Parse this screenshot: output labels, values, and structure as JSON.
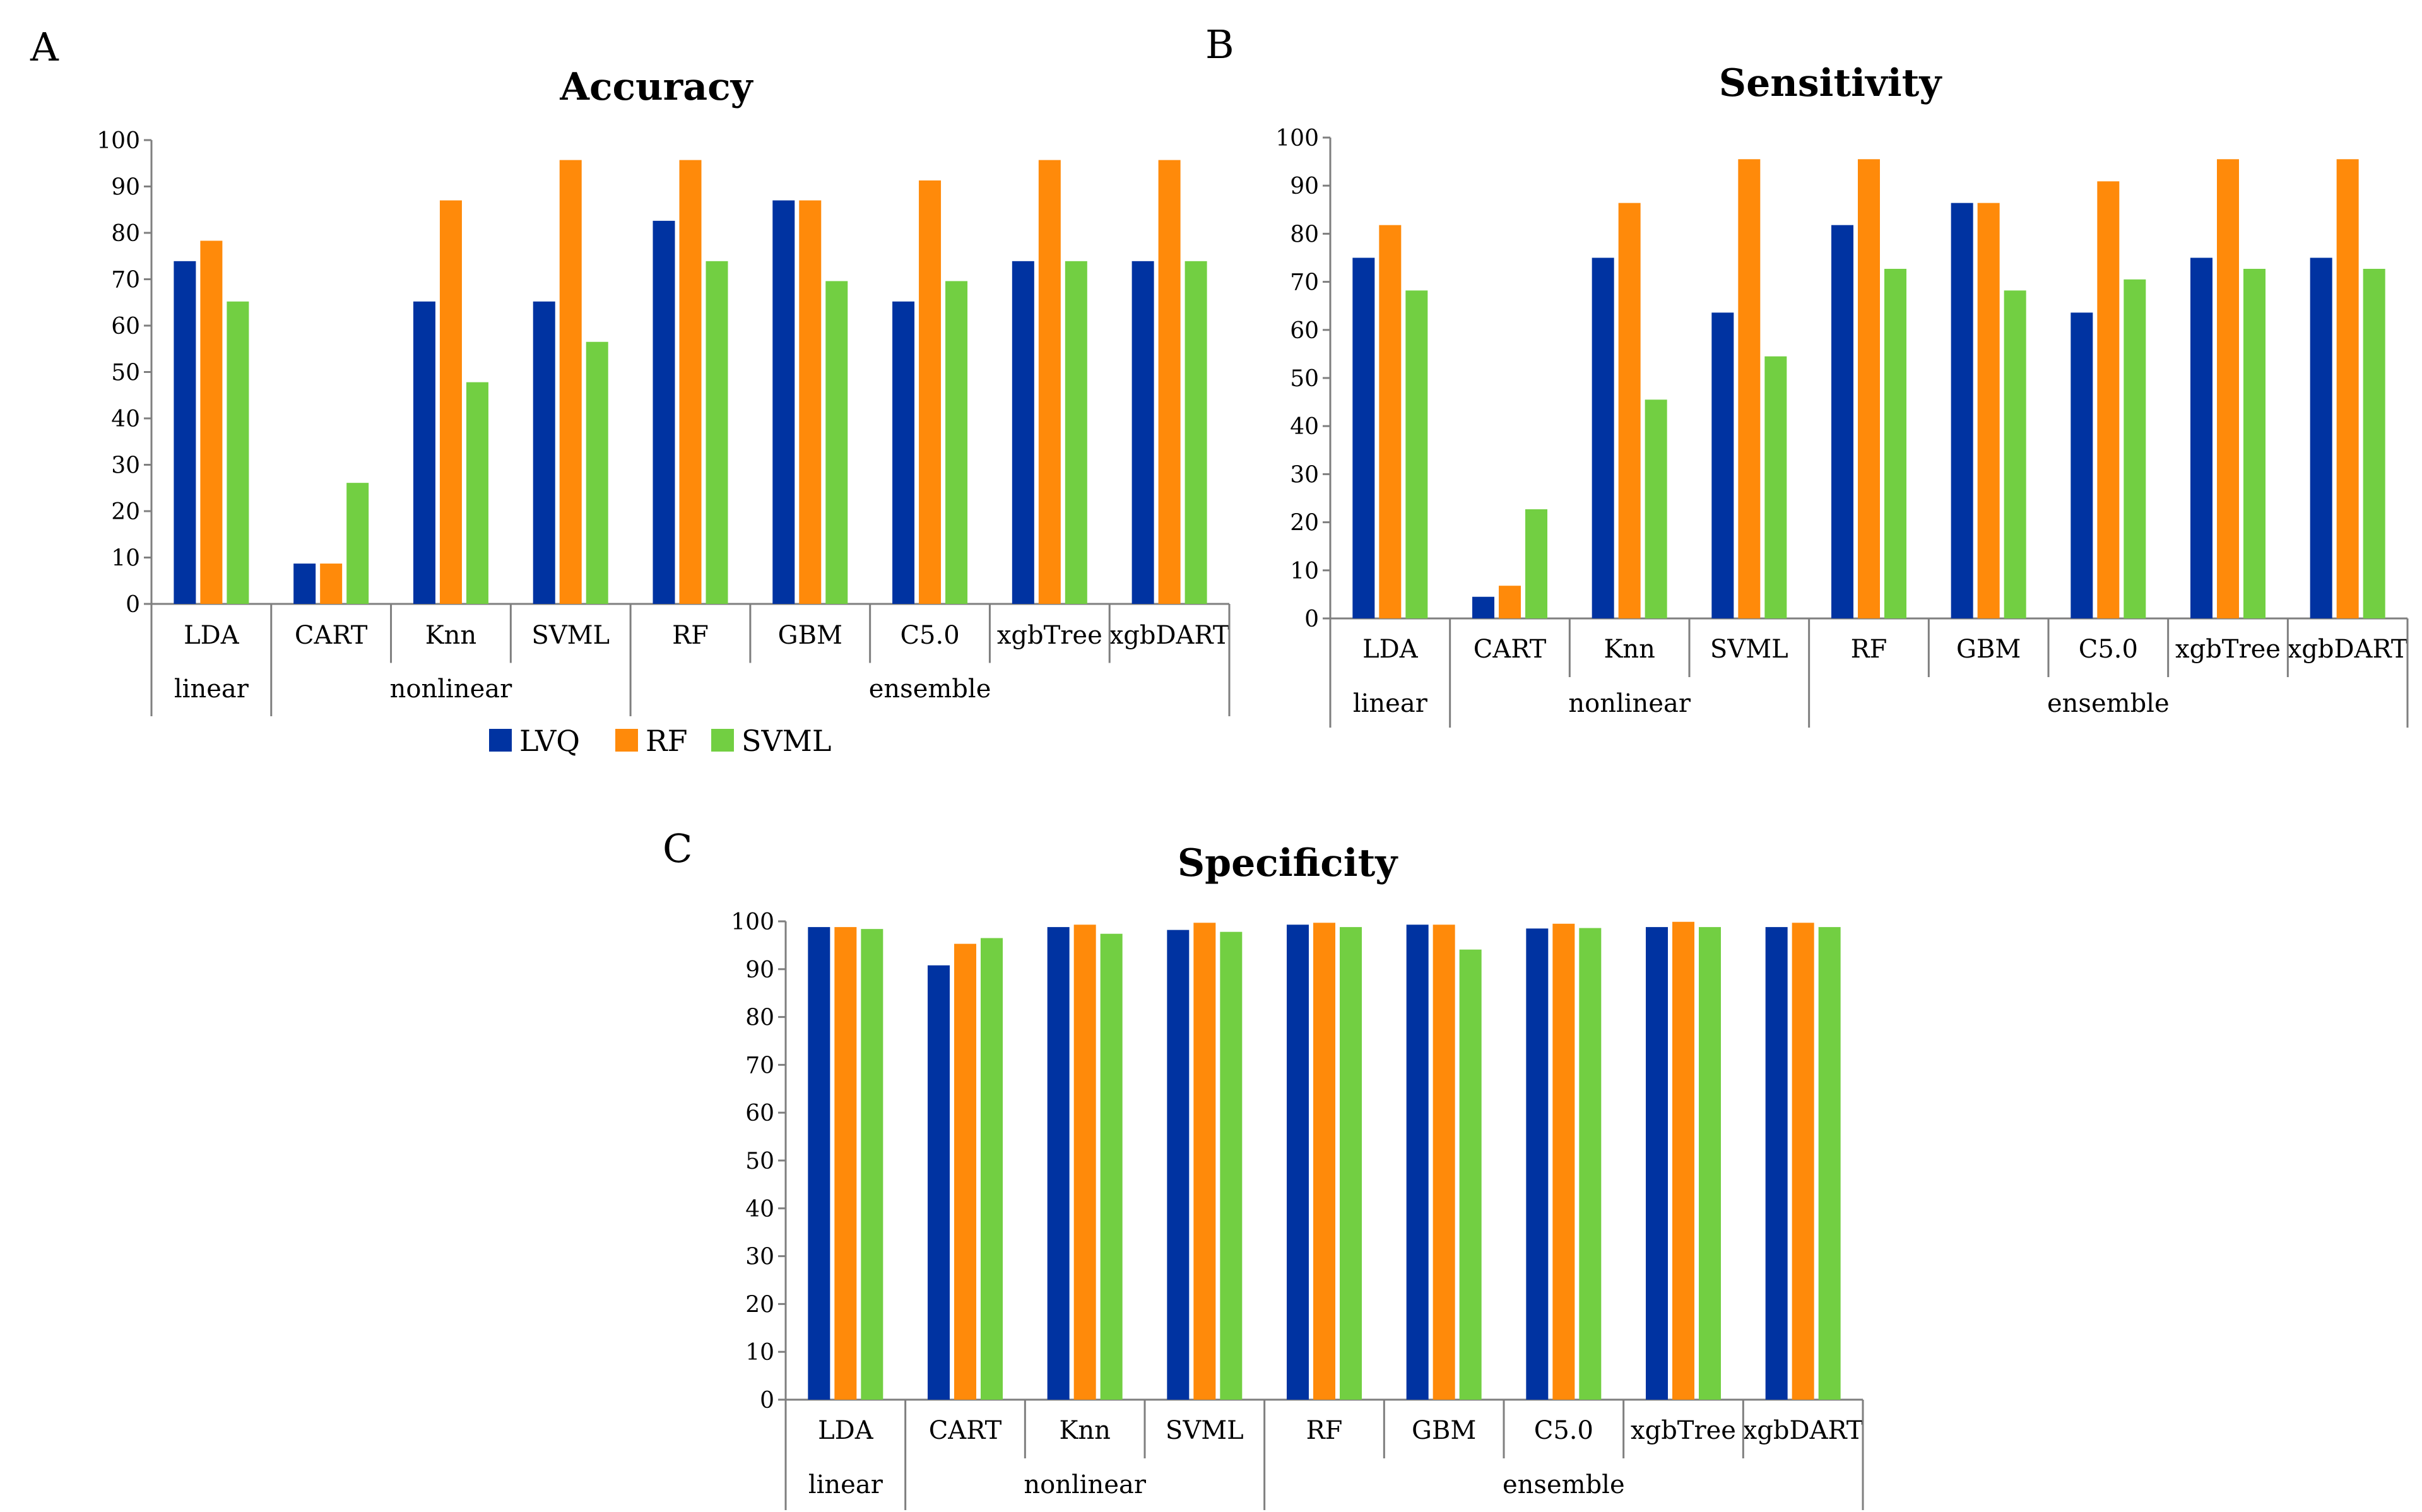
{
  "colors": {
    "LVQ": "#0033a1",
    "RF": "#ff8a0a",
    "SVML": "#72cf42"
  },
  "legend": {
    "items": [
      "LVQ",
      "RF",
      "SVML"
    ]
  },
  "chart_data": [
    {
      "panel": "A",
      "type": "bar",
      "title": "Accuracy",
      "categories": [
        "LDA",
        "CART",
        "Knn",
        "SVML",
        "RF",
        "GBM",
        "C5.0",
        "xgbTree",
        "xgbDART"
      ],
      "groups": [
        {
          "label": "linear",
          "categories": [
            "LDA"
          ]
        },
        {
          "label": "nonlinear",
          "categories": [
            "CART",
            "Knn",
            "SVML"
          ]
        },
        {
          "label": "ensemble",
          "categories": [
            "RF",
            "GBM",
            "C5.0",
            "xgbTree",
            "xgbDART"
          ]
        }
      ],
      "series": [
        {
          "name": "LVQ",
          "values": [
            73.9,
            8.7,
            65.2,
            65.2,
            82.6,
            87.0,
            65.2,
            73.9,
            73.9
          ]
        },
        {
          "name": "RF",
          "values": [
            78.3,
            8.7,
            87.0,
            95.7,
            95.7,
            87.0,
            91.3,
            95.7,
            95.7
          ]
        },
        {
          "name": "SVML",
          "values": [
            65.2,
            26.1,
            47.8,
            56.5,
            73.9,
            69.6,
            69.6,
            73.9,
            73.9
          ]
        }
      ],
      "ylim": [
        0,
        100
      ],
      "yticks": [
        "0",
        "10",
        "20",
        "30",
        "40",
        "50",
        "60",
        "70",
        "80",
        "90",
        "100"
      ],
      "xlabel": "",
      "ylabel": ""
    },
    {
      "panel": "B",
      "type": "bar",
      "title": "Sensitivity",
      "categories": [
        "LDA",
        "CART",
        "Knn",
        "SVML",
        "RF",
        "GBM",
        "C5.0",
        "xgbTree",
        "xgbDART"
      ],
      "groups": [
        {
          "label": "linear",
          "categories": [
            "LDA"
          ]
        },
        {
          "label": "nonlinear",
          "categories": [
            "CART",
            "Knn",
            "SVML"
          ]
        },
        {
          "label": "ensemble",
          "categories": [
            "RF",
            "GBM",
            "C5.0",
            "xgbTree",
            "xgbDART"
          ]
        }
      ],
      "series": [
        {
          "name": "LVQ",
          "values": [
            75.0,
            4.5,
            75.0,
            63.6,
            81.8,
            86.4,
            63.6,
            75.0,
            75.0
          ]
        },
        {
          "name": "RF",
          "values": [
            81.8,
            6.8,
            86.4,
            95.5,
            95.5,
            86.4,
            90.9,
            95.5,
            95.5
          ]
        },
        {
          "name": "SVML",
          "values": [
            68.2,
            22.7,
            45.5,
            54.5,
            72.7,
            68.2,
            70.5,
            72.7,
            72.7
          ]
        }
      ],
      "ylim": [
        0,
        100
      ],
      "yticks": [
        "0",
        "10",
        "20",
        "30",
        "40",
        "50",
        "60",
        "70",
        "80",
        "90",
        "100"
      ],
      "xlabel": "",
      "ylabel": ""
    },
    {
      "panel": "C",
      "type": "bar",
      "title": "Specificity",
      "categories": [
        "LDA",
        "CART",
        "Knn",
        "SVML",
        "RF",
        "GBM",
        "C5.0",
        "xgbTree",
        "xgbDART"
      ],
      "groups": [
        {
          "label": "linear",
          "categories": [
            "LDA"
          ]
        },
        {
          "label": "nonlinear",
          "categories": [
            "CART",
            "Knn",
            "SVML"
          ]
        },
        {
          "label": "ensemble",
          "categories": [
            "RF",
            "GBM",
            "C5.0",
            "xgbTree",
            "xgbDART"
          ]
        }
      ],
      "series": [
        {
          "name": "LVQ",
          "values": [
            98.8,
            90.8,
            98.8,
            98.2,
            99.3,
            99.3,
            98.5,
            98.8,
            98.8
          ]
        },
        {
          "name": "RF",
          "values": [
            98.8,
            95.3,
            99.3,
            99.7,
            99.7,
            99.3,
            99.5,
            99.9,
            99.7
          ]
        },
        {
          "name": "SVML",
          "values": [
            98.4,
            96.5,
            97.4,
            97.8,
            98.8,
            94.1,
            98.6,
            98.8,
            98.8
          ]
        }
      ],
      "ylim": [
        0,
        100
      ],
      "yticks": [
        "0",
        "10",
        "20",
        "30",
        "40",
        "50",
        "60",
        "70",
        "80",
        "90",
        "100"
      ],
      "xlabel": "",
      "ylabel": ""
    }
  ]
}
